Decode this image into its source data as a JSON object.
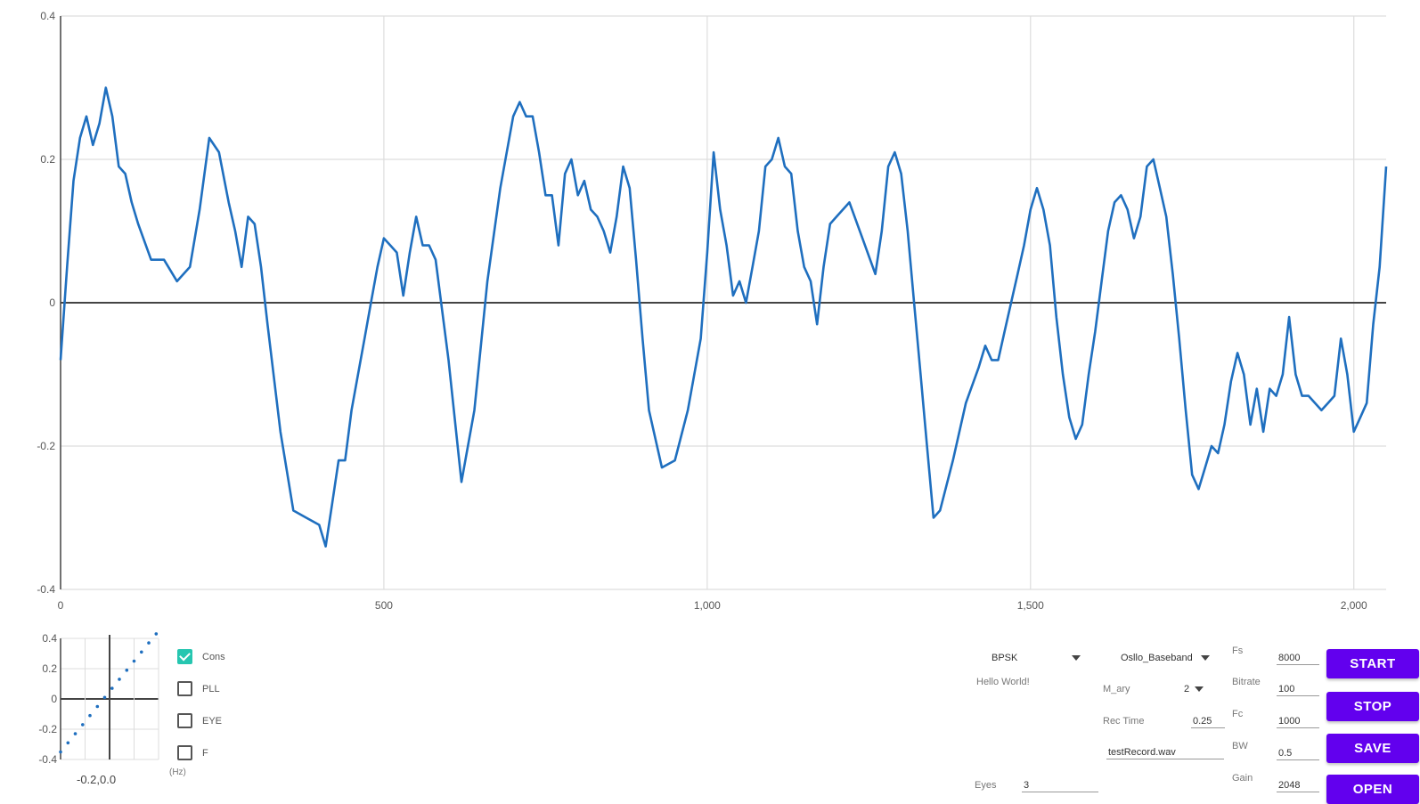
{
  "chart_data": [
    {
      "type": "line",
      "xlim": [
        0,
        2050
      ],
      "ylim": [
        -0.4,
        0.4
      ],
      "x_ticks": [
        0,
        500,
        1000,
        1500,
        2000
      ],
      "x_tick_labels": [
        "0",
        "500",
        "1,000",
        "1,500",
        "2,000"
      ],
      "y_ticks": [
        0.4,
        0.2,
        0,
        -0.2,
        -0.4
      ],
      "y_tick_labels": [
        "0.4",
        "0.2",
        "0",
        "-0.2",
        "-0.4"
      ],
      "grid": true,
      "series": [
        {
          "color": "#1f6fbf",
          "x": [
            0,
            10,
            20,
            30,
            40,
            50,
            60,
            70,
            80,
            90,
            100,
            110,
            120,
            140,
            160,
            180,
            200,
            215,
            230,
            245,
            260,
            270,
            280,
            290,
            300,
            310,
            320,
            340,
            360,
            380,
            400,
            410,
            420,
            430,
            440,
            450,
            460,
            470,
            480,
            490,
            500,
            510,
            520,
            530,
            540,
            550,
            560,
            570,
            580,
            600,
            620,
            640,
            660,
            680,
            700,
            710,
            720,
            730,
            740,
            750,
            760,
            770,
            780,
            790,
            800,
            810,
            820,
            830,
            840,
            850,
            860,
            870,
            880,
            890,
            900,
            910,
            930,
            950,
            970,
            990,
            1000,
            1010,
            1020,
            1030,
            1040,
            1050,
            1060,
            1070,
            1080,
            1090,
            1100,
            1110,
            1120,
            1130,
            1140,
            1150,
            1160,
            1170,
            1180,
            1190,
            1200,
            1220,
            1240,
            1260,
            1270,
            1280,
            1290,
            1300,
            1310,
            1320,
            1330,
            1340,
            1350,
            1360,
            1380,
            1400,
            1420,
            1430,
            1440,
            1450,
            1460,
            1470,
            1480,
            1490,
            1500,
            1510,
            1520,
            1530,
            1540,
            1550,
            1560,
            1570,
            1580,
            1590,
            1600,
            1610,
            1620,
            1630,
            1640,
            1650,
            1660,
            1670,
            1680,
            1690,
            1700,
            1710,
            1720,
            1730,
            1740,
            1750,
            1760,
            1770,
            1780,
            1790,
            1800,
            1810,
            1820,
            1830,
            1840,
            1850,
            1860,
            1870,
            1880,
            1890,
            1900,
            1910,
            1920,
            1930,
            1940,
            1950,
            1960,
            1970,
            1980,
            1990,
            2000,
            2010,
            2020,
            2030,
            2040,
            2050
          ],
          "y": [
            -0.08,
            0.05,
            0.17,
            0.23,
            0.26,
            0.22,
            0.25,
            0.3,
            0.26,
            0.19,
            0.18,
            0.14,
            0.11,
            0.06,
            0.06,
            0.03,
            0.05,
            0.13,
            0.23,
            0.21,
            0.14,
            0.1,
            0.05,
            0.12,
            0.11,
            0.05,
            -0.03,
            -0.18,
            -0.29,
            -0.3,
            -0.31,
            -0.34,
            -0.28,
            -0.22,
            -0.22,
            -0.15,
            -0.1,
            -0.05,
            0.0,
            0.05,
            0.09,
            0.08,
            0.07,
            0.01,
            0.07,
            0.12,
            0.08,
            0.08,
            0.06,
            -0.08,
            -0.25,
            -0.15,
            0.03,
            0.16,
            0.26,
            0.28,
            0.26,
            0.26,
            0.21,
            0.15,
            0.15,
            0.08,
            0.18,
            0.2,
            0.15,
            0.17,
            0.13,
            0.12,
            0.1,
            0.07,
            0.12,
            0.19,
            0.16,
            0.06,
            -0.05,
            -0.15,
            -0.23,
            -0.22,
            -0.15,
            -0.05,
            0.07,
            0.21,
            0.13,
            0.08,
            0.01,
            0.03,
            0.0,
            0.05,
            0.1,
            0.19,
            0.2,
            0.23,
            0.19,
            0.18,
            0.1,
            0.05,
            0.03,
            -0.03,
            0.05,
            0.11,
            0.12,
            0.14,
            0.09,
            0.04,
            0.1,
            0.19,
            0.21,
            0.18,
            0.1,
            0.0,
            -0.1,
            -0.2,
            -0.3,
            -0.29,
            -0.22,
            -0.14,
            -0.09,
            -0.06,
            -0.08,
            -0.08,
            -0.04,
            0.0,
            0.04,
            0.08,
            0.13,
            0.16,
            0.13,
            0.08,
            -0.02,
            -0.1,
            -0.16,
            -0.19,
            -0.17,
            -0.1,
            -0.04,
            0.03,
            0.1,
            0.14,
            0.15,
            0.13,
            0.09,
            0.12,
            0.19,
            0.2,
            0.16,
            0.12,
            0.04,
            -0.05,
            -0.15,
            -0.24,
            -0.26,
            -0.23,
            -0.2,
            -0.21,
            -0.17,
            -0.11,
            -0.07,
            -0.1,
            -0.17,
            -0.12,
            -0.18,
            -0.12,
            -0.13,
            -0.1,
            -0.02,
            -0.1,
            -0.13,
            -0.13,
            -0.14,
            -0.15,
            -0.14,
            -0.13,
            -0.05,
            -0.1,
            -0.18,
            -0.16,
            -0.14,
            -0.03,
            0.05,
            0.19
          ]
        }
      ]
    },
    {
      "type": "scatter",
      "xlim": [
        -0.4,
        0.4
      ],
      "ylim": [
        -0.4,
        0.4
      ],
      "y_ticks": [
        0.4,
        0.2,
        0,
        -0.2,
        -0.4
      ],
      "y_tick_labels": [
        "0.4",
        "0.2",
        "0",
        "-0.2",
        "-0.4"
      ],
      "grid": true,
      "series": [
        {
          "color": "#1f6fbf",
          "x": [
            -0.4,
            -0.34,
            -0.28,
            -0.22,
            -0.16,
            -0.1,
            -0.04,
            0.02,
            0.08,
            0.14,
            0.2,
            0.26,
            0.32,
            0.38
          ],
          "y": [
            -0.35,
            -0.29,
            -0.23,
            -0.17,
            -0.11,
            -0.05,
            0.01,
            0.07,
            0.13,
            0.19,
            0.25,
            0.31,
            0.37,
            0.43
          ]
        }
      ]
    }
  ],
  "constellation": {
    "x_readout": "-0.2,0.0"
  },
  "checkboxes": [
    {
      "label": "Cons",
      "checked": true
    },
    {
      "label": "PLL",
      "checked": false
    },
    {
      "label": "EYE",
      "checked": false
    },
    {
      "label": "F",
      "checked": false
    }
  ],
  "unit_label": "(Hz)",
  "modulation": {
    "value": "BPSK"
  },
  "mode": {
    "value": "Osllo_Baseband"
  },
  "message": "Hello World!",
  "m_ary": {
    "label": "M_ary",
    "value": "2"
  },
  "rec_time": {
    "label": "Rec Time",
    "value": "0.25"
  },
  "filename": "testRecord.wav",
  "eyes": {
    "label": "Eyes",
    "value": "3"
  },
  "params": [
    {
      "label": "Fs",
      "value": "8000"
    },
    {
      "label": "Bitrate",
      "value": "100"
    },
    {
      "label": "Fc",
      "value": "1000"
    },
    {
      "label": "BW",
      "value": "0.5"
    },
    {
      "label": "Gain",
      "value": "2048"
    }
  ],
  "buttons": {
    "start": "START",
    "stop": "STOP",
    "save": "SAVE",
    "open": "OPEN"
  }
}
